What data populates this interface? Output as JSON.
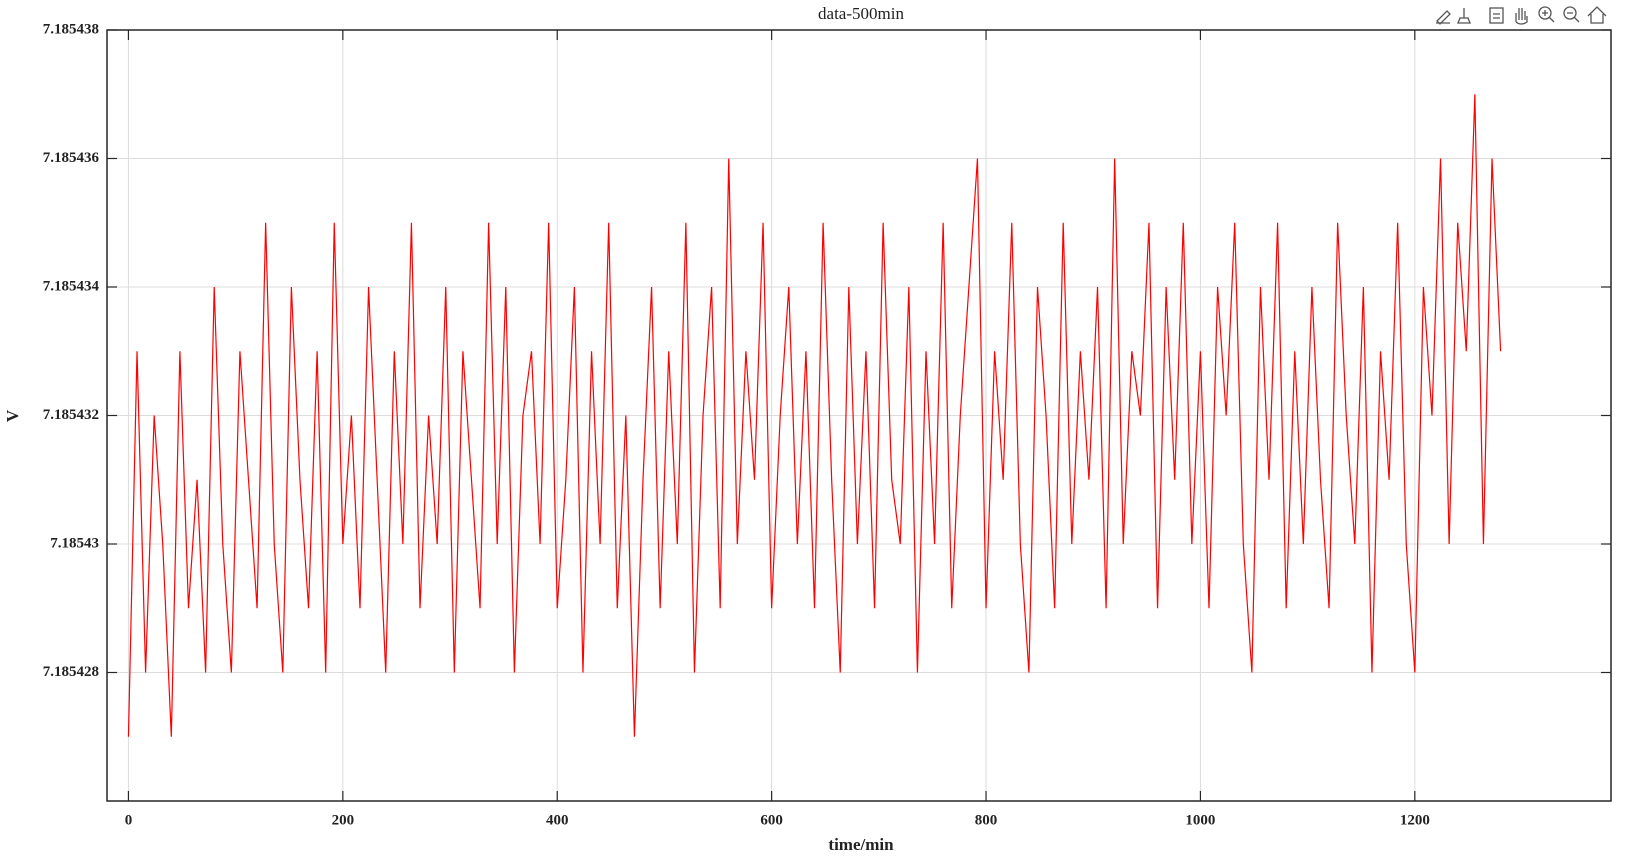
{
  "chart_data": {
    "type": "line",
    "title": "data-500min",
    "x_label": "time/min",
    "y_label": "V",
    "color": "#ff0000",
    "grid": true,
    "xlim": [
      -20,
      1383
    ],
    "xticks": [
      0,
      200,
      400,
      600,
      800,
      1000,
      1200
    ],
    "ylim": [
      7.185426,
      7.185438
    ],
    "yticks": [
      7.185428,
      7.18543,
      7.185432,
      7.185434,
      7.185436,
      7.185438
    ],
    "x": [
      0,
      8,
      16,
      24,
      32,
      40,
      48,
      56,
      64,
      72,
      80,
      88,
      96,
      104,
      112,
      120,
      128,
      136,
      144,
      152,
      160,
      168,
      176,
      184,
      192,
      200,
      208,
      216,
      224,
      232,
      240,
      248,
      256,
      264,
      272,
      280,
      288,
      296,
      304,
      312,
      320,
      328,
      336,
      344,
      352,
      360,
      368,
      376,
      384,
      392,
      400,
      408,
      416,
      424,
      432,
      440,
      448,
      456,
      464,
      472,
      480,
      488,
      496,
      504,
      512,
      520,
      528,
      536,
      544,
      552,
      560,
      568,
      576,
      584,
      592,
      600,
      608,
      616,
      624,
      632,
      640,
      648,
      656,
      664,
      672,
      680,
      688,
      696,
      704,
      712,
      720,
      728,
      736,
      744,
      752,
      760,
      768,
      776,
      784,
      792,
      800,
      808,
      816,
      824,
      832,
      840,
      848,
      856,
      864,
      872,
      880,
      888,
      896,
      904,
      912,
      920,
      928,
      936,
      944,
      952,
      960,
      968,
      976,
      984,
      992,
      1000,
      1008,
      1016,
      1024,
      1032,
      1040,
      1048,
      1056,
      1064,
      1072,
      1080,
      1088,
      1096,
      1104,
      1112,
      1120,
      1128,
      1136,
      1144,
      1152,
      1160,
      1168,
      1176,
      1184,
      1192,
      1200,
      1208,
      1216,
      1224,
      1232,
      1240,
      1248,
      1256,
      1264,
      1272,
      1280
    ],
    "values": [
      7.185427,
      7.185433,
      7.185428,
      7.185432,
      7.18543,
      7.185427,
      7.185433,
      7.185429,
      7.185431,
      7.185428,
      7.185434,
      7.18543,
      7.185428,
      7.185433,
      7.185431,
      7.185429,
      7.185435,
      7.18543,
      7.185428,
      7.185434,
      7.185431,
      7.185429,
      7.185433,
      7.185428,
      7.185435,
      7.18543,
      7.185432,
      7.185429,
      7.185434,
      7.185431,
      7.185428,
      7.185433,
      7.18543,
      7.185435,
      7.185429,
      7.185432,
      7.18543,
      7.185434,
      7.185428,
      7.185433,
      7.185431,
      7.185429,
      7.185435,
      7.18543,
      7.185434,
      7.185428,
      7.185432,
      7.185433,
      7.18543,
      7.185435,
      7.185429,
      7.185431,
      7.185434,
      7.185428,
      7.185433,
      7.18543,
      7.185435,
      7.185429,
      7.185432,
      7.185427,
      7.185431,
      7.185434,
      7.185429,
      7.185433,
      7.18543,
      7.185435,
      7.185428,
      7.185432,
      7.185434,
      7.185429,
      7.185436,
      7.18543,
      7.185433,
      7.185431,
      7.185435,
      7.185429,
      7.185432,
      7.185434,
      7.18543,
      7.185433,
      7.185429,
      7.185435,
      7.185431,
      7.185428,
      7.185434,
      7.18543,
      7.185433,
      7.185429,
      7.185435,
      7.185431,
      7.18543,
      7.185434,
      7.185428,
      7.185433,
      7.18543,
      7.185435,
      7.185429,
      7.185432,
      7.185434,
      7.185436,
      7.185429,
      7.185433,
      7.185431,
      7.185435,
      7.18543,
      7.185428,
      7.185434,
      7.185432,
      7.185429,
      7.185435,
      7.18543,
      7.185433,
      7.185431,
      7.185434,
      7.185429,
      7.185436,
      7.18543,
      7.185433,
      7.185432,
      7.185435,
      7.185429,
      7.185434,
      7.185431,
      7.185435,
      7.18543,
      7.185433,
      7.185429,
      7.185434,
      7.185432,
      7.185435,
      7.18543,
      7.185428,
      7.185434,
      7.185431,
      7.185435,
      7.185429,
      7.185433,
      7.18543,
      7.185434,
      7.185431,
      7.185429,
      7.185435,
      7.185432,
      7.18543,
      7.185434,
      7.185428,
      7.185433,
      7.185431,
      7.185435,
      7.18543,
      7.185428,
      7.185434,
      7.185432,
      7.185436,
      7.18543,
      7.185435,
      7.185433,
      7.185437,
      7.18543,
      7.185436,
      7.185433
    ]
  }
}
